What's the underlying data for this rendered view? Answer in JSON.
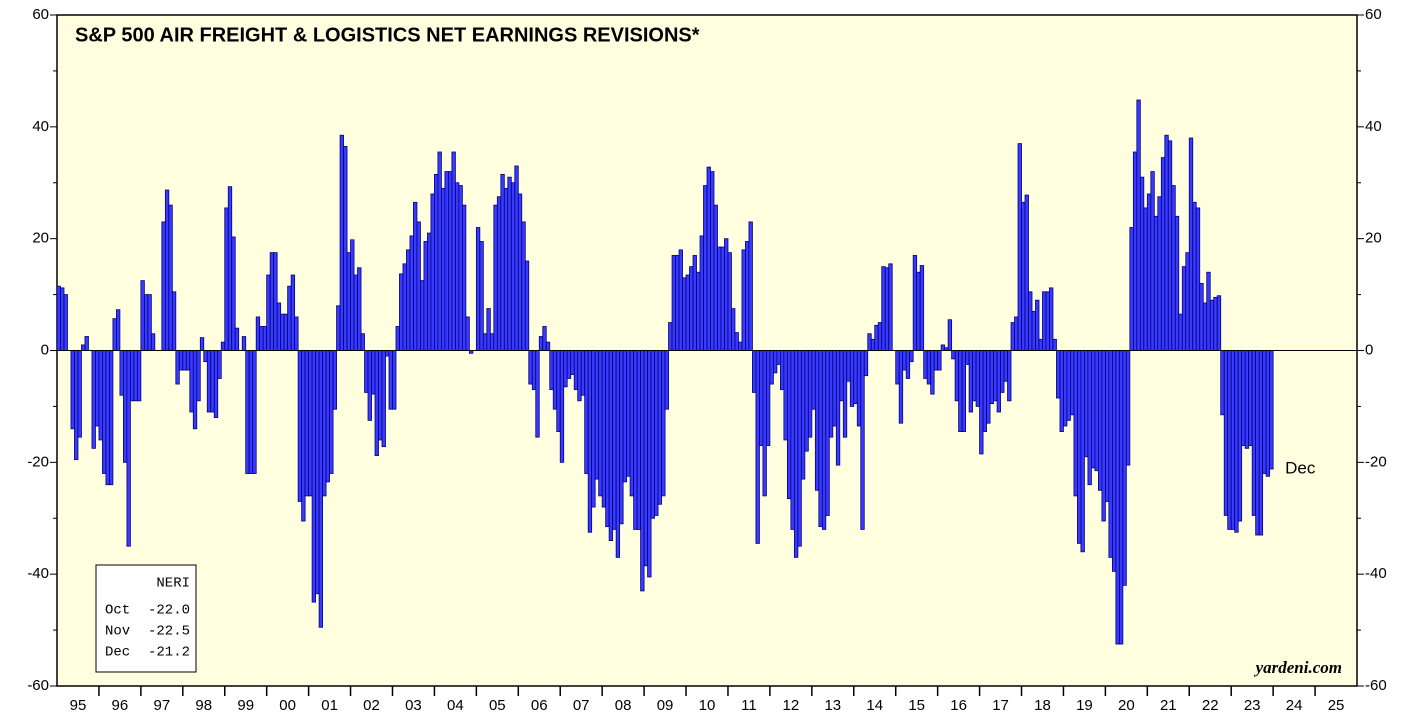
{
  "chart_data": {
    "type": "bar",
    "title": "S&P 500 AIR FREIGHT & LOGISTICS NET EARNINGS REVISIONS*",
    "source": "yardeni.com",
    "annotation": "Dec",
    "legend_box": {
      "title": "NERI",
      "rows": [
        [
          "Oct",
          "-22.0"
        ],
        [
          "Nov",
          "-22.5"
        ],
        [
          "Dec",
          "-21.2"
        ]
      ]
    },
    "xticks": [
      "95",
      "96",
      "97",
      "98",
      "99",
      "00",
      "01",
      "02",
      "03",
      "04",
      "05",
      "06",
      "07",
      "08",
      "09",
      "10",
      "11",
      "12",
      "13",
      "14",
      "15",
      "16",
      "17",
      "18",
      "19",
      "20",
      "21",
      "22",
      "23",
      "24",
      "25"
    ],
    "color": "#3a3aff",
    "ylim": [
      -60,
      60
    ],
    "yticks": [
      -60,
      -40,
      -20,
      0,
      20,
      40,
      60
    ],
    "yminor": [
      -50,
      -30,
      -10,
      10,
      30,
      50
    ],
    "values": [
      11.5,
      11.2,
      10,
      0,
      -14,
      -19.5,
      -15.5,
      1,
      2.5,
      0,
      -17.5,
      -13.5,
      -16,
      -22,
      -24,
      -24,
      5.7,
      7.3,
      -8,
      -20,
      -35,
      -9,
      -9,
      -9,
      12.5,
      10,
      10,
      3,
      0,
      0,
      23,
      28.7,
      26,
      10.5,
      -6,
      -3.5,
      -3.5,
      -3.5,
      -11,
      -14,
      -9,
      2.3,
      -2,
      -11,
      -11,
      -12,
      -5,
      1.5,
      25.5,
      29.3,
      20.3,
      4,
      0,
      2.5,
      -22,
      -22,
      -22,
      6,
      4.3,
      4.3,
      13.5,
      17.5,
      17.5,
      8.5,
      6.5,
      6.5,
      11.5,
      13.5,
      6,
      -27,
      -30.5,
      -26,
      -26,
      -45,
      -43.5,
      -49.5,
      -26,
      -23.5,
      -22,
      -10.5,
      8,
      38.5,
      36.5,
      17.5,
      19.8,
      13.5,
      14.8,
      3,
      -7.5,
      -12.5,
      -7.8,
      -18.8,
      -16,
      -17.2,
      -1,
      -10.5,
      -10.5,
      4.3,
      13.7,
      15.5,
      18,
      20.5,
      26.5,
      23,
      12.5,
      19.5,
      21,
      28,
      31.5,
      35.5,
      29,
      32,
      32,
      35.5,
      30,
      29.5,
      26,
      6,
      -0.5,
      0,
      22,
      19.5,
      3,
      7.5,
      3,
      26,
      27.5,
      31.5,
      29,
      31,
      30,
      33,
      28,
      23,
      16,
      -6,
      -7,
      -15.5,
      2.5,
      4.3,
      1.5,
      -7,
      -10.5,
      -14.5,
      -20,
      -6.5,
      -5,
      -4.3,
      -7,
      -9,
      -8,
      -22,
      -32.5,
      -28,
      -23,
      -26,
      -28,
      -31.5,
      -34,
      -32,
      -37,
      -31,
      -23.5,
      -22.5,
      -26,
      -32,
      -32,
      -43,
      -38.5,
      -40.5,
      -30,
      -29.5,
      -27.5,
      -26,
      -10.5,
      5,
      17,
      17,
      18,
      13,
      13.5,
      15,
      17,
      14,
      20.5,
      29.5,
      32.8,
      32,
      26,
      18.5,
      18.5,
      20,
      17.5,
      7.5,
      3.2,
      1.5,
      18,
      19.5,
      23,
      -7.5,
      -34.5,
      -17,
      -26,
      -17,
      -6,
      -4,
      -2.5,
      -7,
      -16,
      -26.5,
      -32,
      -37,
      -35,
      -23,
      -18,
      -15.5,
      -10.5,
      -25,
      -31.5,
      -32,
      -29.5,
      -15.5,
      -13.5,
      -20.5,
      -9,
      -15.5,
      -5.5,
      -10,
      -9.5,
      -13.5,
      -32,
      -4.5,
      3,
      2,
      4.5,
      5,
      15,
      14.8,
      15.5,
      0,
      -6,
      -13,
      -3.5,
      -5,
      -2,
      17,
      14,
      15.2,
      -5,
      -6,
      -7.8,
      -3.5,
      -3.5,
      1,
      0.5,
      5.5,
      -1.5,
      -9,
      -14.5,
      -14.5,
      -2.5,
      -11,
      -9,
      -10,
      -18.5,
      -14.5,
      -13,
      -9.5,
      -9,
      -11,
      -7.5,
      -5.5,
      -9,
      5,
      6,
      37,
      26.5,
      27.8,
      10.5,
      7,
      9,
      2,
      10.5,
      10.5,
      11.2,
      2,
      -8.5,
      -14.5,
      -13.5,
      -12.5,
      -11.5,
      -26,
      -34.5,
      -36,
      -19,
      -24,
      -21,
      -21.5,
      -25,
      -30.5,
      -27,
      -37,
      -39.5,
      -52.5,
      -52.5,
      -42,
      -20.5,
      22,
      35.5,
      44.8,
      31,
      25.5,
      28,
      32,
      24,
      27.5,
      34.5,
      38.5,
      37.5,
      29.5,
      24,
      6.5,
      15,
      17.5,
      38,
      26.5,
      25.5,
      12,
      8.5,
      14,
      9,
      9.5,
      9.8,
      -11.5,
      -29.5,
      -32,
      -32,
      -32.5,
      -30.5,
      -17,
      -17.5,
      -17,
      -29.5,
      -33,
      -33,
      -22,
      -22.5,
      -21.2
    ]
  }
}
